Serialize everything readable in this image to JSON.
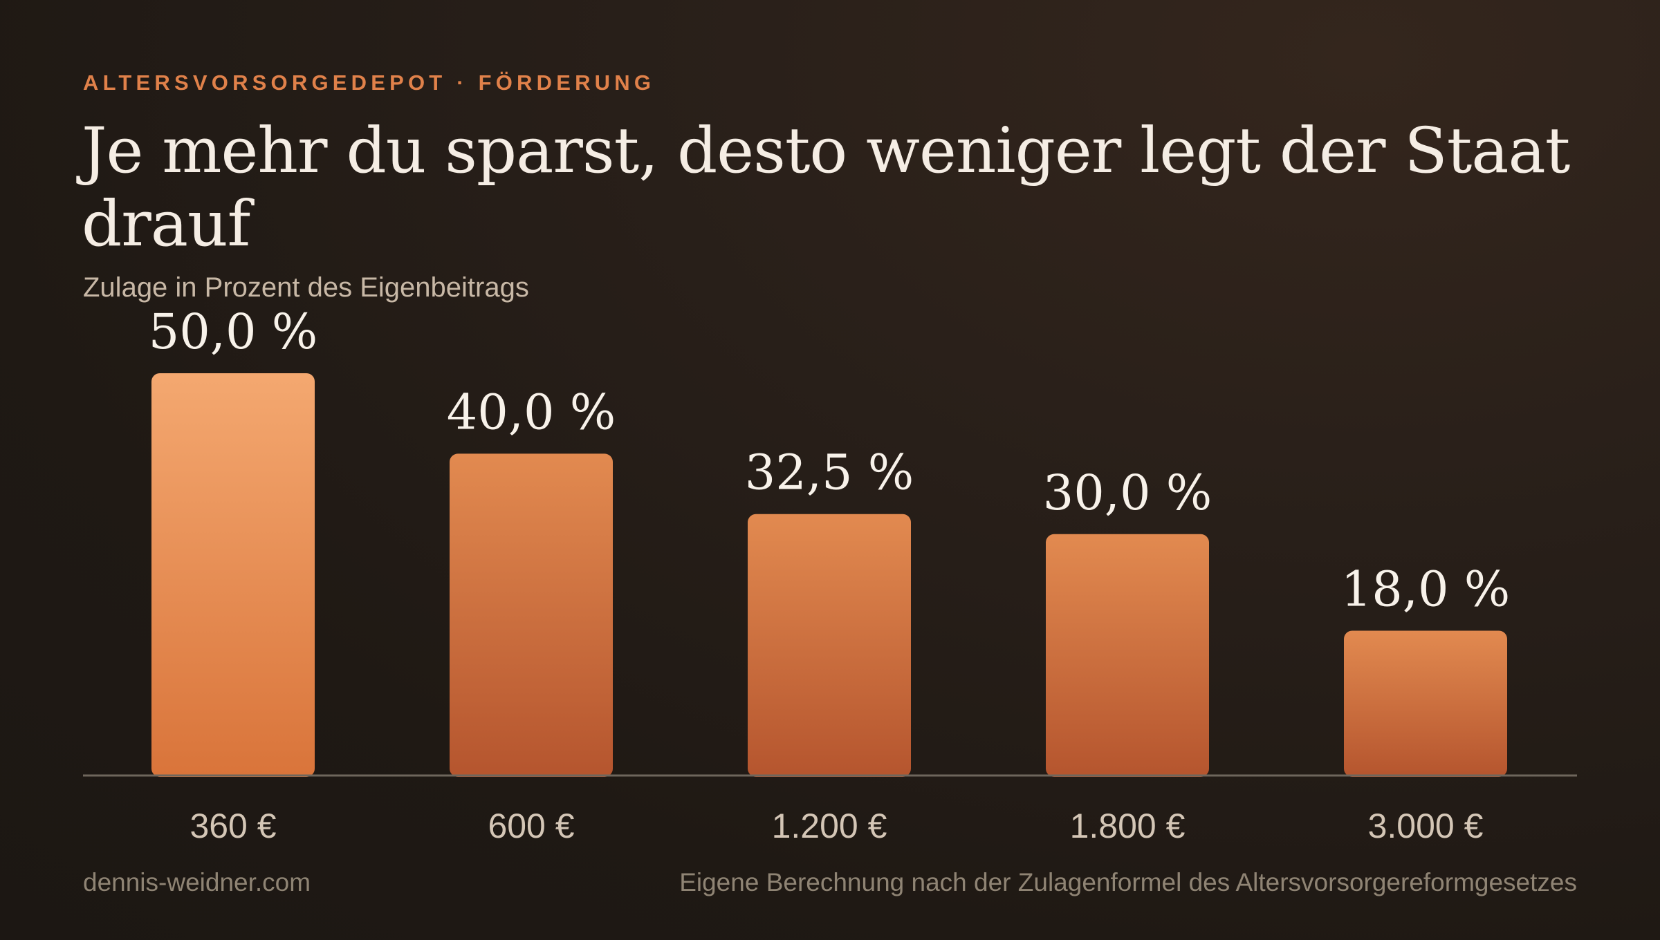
{
  "header": {
    "eyebrow": "ALTERSVORSORGEDEPOT · FÖRDERUNG",
    "title": "Je mehr du sparst, desto weniger legt der Staat drauf",
    "subtitle": "Zulage in Prozent des Eigenbeitrags"
  },
  "footer": {
    "source_site": "dennis-weidner.com",
    "note": "Eigene Berechnung nach der Zulagenformel des Altersvorsorgereformgesetzes"
  },
  "colors": {
    "accent": "#e0814a",
    "highlight_bar_top": "#f4a870",
    "highlight_bar_bottom": "#d9743a",
    "bar_top": "#e28a50",
    "bar_bottom": "#b5552e",
    "baseline": "#6e665c",
    "value_label": "#f8f2ea",
    "category_label": "#d4c6b6"
  },
  "chart_data": {
    "type": "bar",
    "categories": [
      "360 €",
      "600 €",
      "1.200 €",
      "1.800 €",
      "3.000 €"
    ],
    "values": [
      50.0,
      40.0,
      32.5,
      30.0,
      18.0
    ],
    "value_labels": [
      "50,0 %",
      "40,0 %",
      "32,5 %",
      "30,0 %",
      "18,0 %"
    ],
    "highlight_index": 0,
    "ylim": [
      0,
      50
    ],
    "grid": false,
    "legend": "none"
  }
}
